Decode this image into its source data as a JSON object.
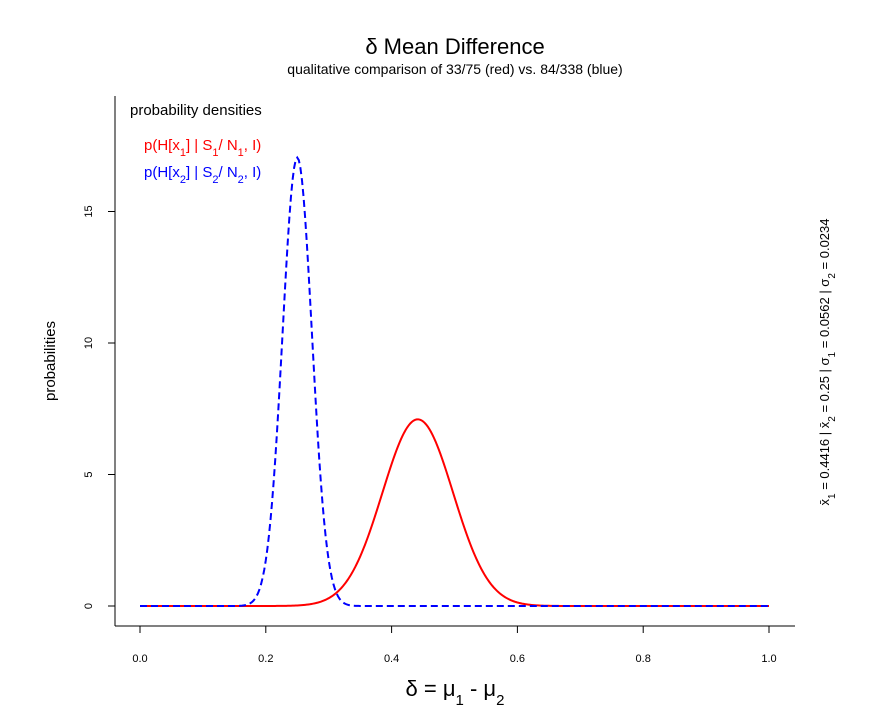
{
  "chart_data": {
    "type": "line",
    "title": "δ Mean Difference",
    "subtitle": "qualitative comparison of 33/75 (red) vs. 84/338 (blue)",
    "xlabel": {
      "base": "δ = μ",
      "sub1": "1",
      "mid": " - μ",
      "sub2": "2"
    },
    "ylabel": "probabilities",
    "xlim": [
      0,
      1
    ],
    "ylim": [
      0,
      17
    ],
    "xticks": [
      "0.0",
      "0.2",
      "0.4",
      "0.6",
      "0.8",
      "1.0"
    ],
    "xtick_values": [
      0,
      0.2,
      0.4,
      0.6,
      0.8,
      1.0
    ],
    "yticks": [
      "0",
      "5",
      "10",
      "15"
    ],
    "ytick_values": [
      0,
      5,
      10,
      15
    ],
    "legend_title": "probability densities",
    "grid": false,
    "legend_position": "top-left",
    "series": [
      {
        "legend": {
          "a": "p(H[x",
          "s1": "1",
          "b": "] | S",
          "s2": "1",
          "c": "/ N",
          "s3": "1",
          "d": ", I)"
        },
        "color": "#ff0000",
        "dash": "solid",
        "mean": 0.4416,
        "sd": 0.0562
      },
      {
        "legend": {
          "a": "p(H[x",
          "s1": "2",
          "b": "] | S",
          "s2": "2",
          "c": "/ N",
          "s3": "2",
          "d": ", I)"
        },
        "color": "#0000ff",
        "dash": "dashed",
        "mean": 0.25,
        "sd": 0.0234
      }
    ],
    "side_note": {
      "x1": "x̄",
      "s1": "1",
      "v1": " = 0.4416 | ",
      "x2": "x̄",
      "s2": "2",
      "v2": " = 0.25 | ",
      "x3": "σ",
      "s3": "1",
      "v3": " = 0.0562 | ",
      "x4": "σ",
      "s4": "2",
      "v4": " = 0.0234"
    }
  }
}
